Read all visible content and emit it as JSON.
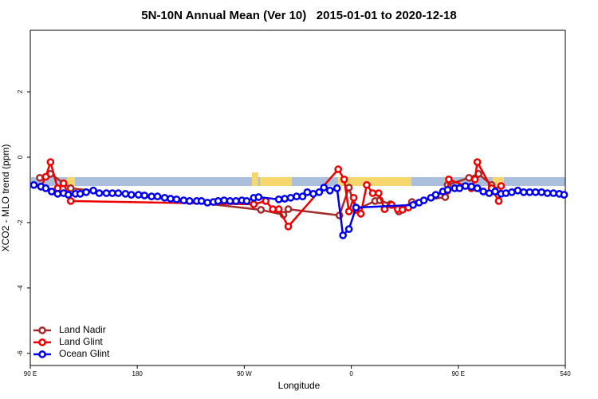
{
  "chart_data": {
    "type": "line",
    "title": "5N-10N Annual Mean (Ver 10)   2015-01-01 to 2020-12-18",
    "xlabel": "Longitude",
    "ylabel": "XCO2 - MLO trend (ppm)",
    "xlim": [
      90,
      540
    ],
    "ylim": [
      -6.37,
      3.88
    ],
    "xticks": [
      {
        "value": 90,
        "label": "90 E"
      },
      180,
      {
        "value": 270,
        "label": "90 W"
      },
      {
        "value": 360,
        "label": "0"
      },
      {
        "value": 450,
        "label": "90 E"
      },
      540
    ],
    "yticks": [
      -6,
      -4,
      -2,
      0,
      2
    ],
    "legend": "bottom-left",
    "series": [
      {
        "name": "Land Nadir",
        "color": "#a52a2a",
        "x": [
          98,
          107,
          124,
          284,
          303,
          307,
          350,
          358,
          364,
          380,
          384,
          393,
          400,
          411,
          439,
          441,
          459,
          467,
          478,
          484
        ],
        "values": [
          -0.63,
          -0.51,
          -0.95,
          -1.61,
          -1.76,
          -1.59,
          -1.78,
          -0.93,
          -1.61,
          -1.34,
          -1.32,
          -1.44,
          -1.66,
          -1.37,
          -1.22,
          -0.85,
          -0.63,
          -0.51,
          -0.85,
          -1.0
        ]
      },
      {
        "name": "Land Glint",
        "color": "#ee0000",
        "x": [
          99,
          103,
          107,
          113,
          118,
          124,
          278,
          288,
          294,
          299,
          307,
          349,
          354,
          358,
          362,
          364,
          368,
          373,
          378,
          383,
          388,
          394,
          399,
          403,
          408,
          441,
          442,
          461,
          464,
          466,
          478,
          484,
          486
        ],
        "values": [
          -0.9,
          -0.6,
          -0.15,
          -0.95,
          -0.8,
          -1.34,
          -1.44,
          -1.34,
          -1.59,
          -1.59,
          -2.12,
          -0.37,
          -0.68,
          -1.66,
          -1.24,
          -1.61,
          -1.73,
          -0.85,
          -1.1,
          -1.1,
          -1.59,
          -1.46,
          -1.59,
          -1.61,
          -1.54,
          -1.02,
          -0.68,
          -0.95,
          -0.68,
          -0.15,
          -0.95,
          -1.34,
          -0.88
        ]
      },
      {
        "name": "Ocean Glint",
        "color": "#0000ee",
        "x": [
          93,
          99,
          103,
          108,
          113,
          118,
          122,
          128,
          132,
          137,
          143,
          148,
          154,
          159,
          164,
          170,
          175,
          181,
          186,
          192,
          197,
          203,
          208,
          213,
          219,
          224,
          230,
          234,
          239,
          244,
          248,
          253,
          258,
          263,
          268,
          272,
          278,
          282,
          299,
          304,
          309,
          314,
          319,
          323,
          328,
          333,
          337,
          342,
          348,
          353,
          358,
          364,
          412,
          417,
          421,
          427,
          431,
          437,
          441,
          447,
          451,
          456,
          461,
          466,
          471,
          476,
          481,
          486,
          490,
          495,
          500,
          505,
          510,
          515,
          520,
          525,
          530,
          535,
          539
        ],
        "values": [
          -0.85,
          -0.9,
          -0.95,
          -1.05,
          -1.12,
          -1.1,
          -1.15,
          -1.12,
          -1.12,
          -1.07,
          -1.02,
          -1.1,
          -1.1,
          -1.1,
          -1.1,
          -1.12,
          -1.15,
          -1.15,
          -1.17,
          -1.2,
          -1.2,
          -1.24,
          -1.27,
          -1.29,
          -1.32,
          -1.34,
          -1.34,
          -1.34,
          -1.39,
          -1.37,
          -1.34,
          -1.32,
          -1.34,
          -1.34,
          -1.32,
          -1.34,
          -1.24,
          -1.22,
          -1.29,
          -1.27,
          -1.24,
          -1.2,
          -1.2,
          -1.07,
          -1.12,
          -1.07,
          -0.93,
          -1.02,
          -0.95,
          -2.39,
          -2.2,
          -1.54,
          -1.46,
          -1.39,
          -1.32,
          -1.24,
          -1.15,
          -1.05,
          -1.0,
          -0.95,
          -0.95,
          -0.88,
          -0.9,
          -0.95,
          -1.05,
          -1.1,
          -1.05,
          -1.12,
          -1.1,
          -1.07,
          -1.02,
          -1.07,
          -1.07,
          -1.07,
          -1.07,
          -1.1,
          -1.1,
          -1.12,
          -1.15
        ]
      }
    ]
  }
}
